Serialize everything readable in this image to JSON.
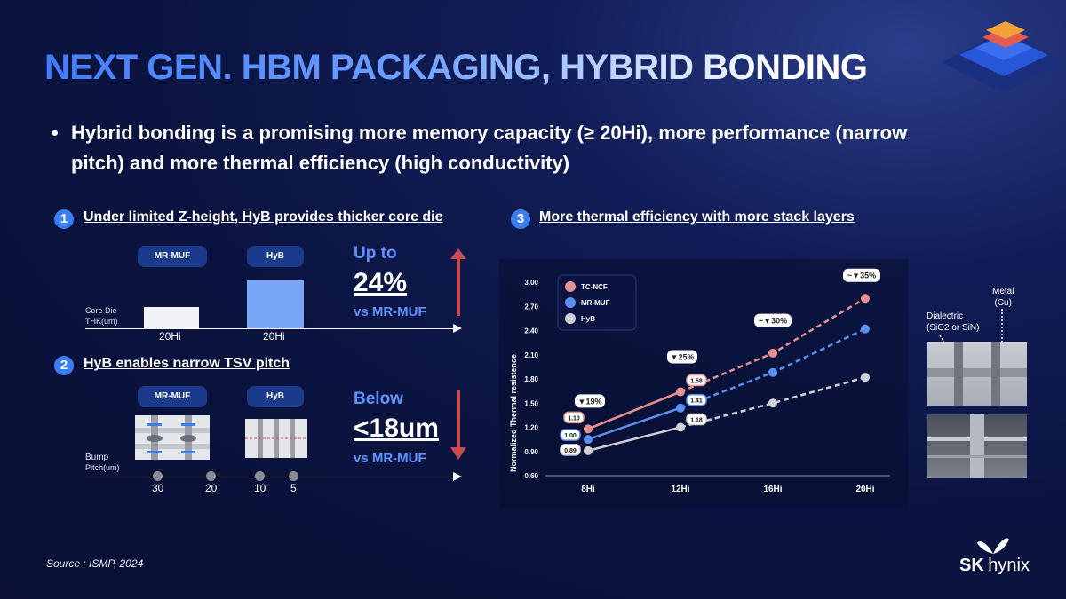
{
  "title": "NEXT GEN. HBM PACKAGING, HYBRID BONDING",
  "bullet": "Hybrid bonding is a promising more memory capacity (≥ 20Hi), more performance (narrow pitch) and more thermal efficiency (high conductivity)",
  "sections": [
    {
      "num": "1",
      "title": "Under limited Z-height, HyB provides thicker core die"
    },
    {
      "num": "2",
      "title": "HyB enables narrow TSV pitch"
    },
    {
      "num": "3",
      "title": "More thermal efficiency with more stack layers"
    }
  ],
  "s1": {
    "pill_a": "MR-MUF",
    "pill_b": "HyB",
    "axis_label_1": "Core Die",
    "axis_label_2": "THK(um)",
    "cat_a": "20Hi",
    "cat_b": "20Hi",
    "bar_a_rel": 0.45,
    "bar_b_rel": 1.0,
    "up": "Up to",
    "pct": "24%",
    "vs": "vs MR-MUF"
  },
  "s2": {
    "pill_a": "MR-MUF",
    "pill_b": "HyB",
    "axis_label_1": "Bump",
    "axis_label_2": "Pitch(um)",
    "ticks": [
      "30",
      "20",
      "10",
      "5"
    ],
    "below": "Below",
    "value": "<18um",
    "vs": "vs MR-MUF"
  },
  "chart_data": {
    "type": "line",
    "ylabel": "Normalized Thermal resistence",
    "categories": [
      "8Hi",
      "12Hi",
      "16Hi",
      "20Hi"
    ],
    "ylim": [
      0.6,
      3.0
    ],
    "yticks": [
      "3.00",
      "2.70",
      "2.40",
      "2.10",
      "1.80",
      "1.50",
      "1.20",
      "0.90",
      "0.60"
    ],
    "series": [
      {
        "name": "TC-NCF",
        "color": "#e88f8f",
        "values": [
          1.18,
          1.64,
          2.12,
          2.8
        ]
      },
      {
        "name": "MR-MUF",
        "color": "#5b8ff2",
        "values": [
          1.05,
          1.44,
          1.88,
          2.42
        ]
      },
      {
        "name": "HyB",
        "color": "#d0d0d6",
        "values": [
          0.91,
          1.2,
          1.5,
          1.82
        ]
      }
    ],
    "value_labels": [
      "1.10",
      "1.00",
      "0.89",
      "1.58",
      "1.41",
      "1.18"
    ],
    "reductions": [
      "▼19%",
      "▼25%",
      "~▼30%",
      "~▼35%"
    ]
  },
  "annotations": {
    "metal_1": "Metal",
    "metal_2": "(Cu)",
    "diel_1": "Dialectric",
    "diel_2": "(SiO2 or SiN)"
  },
  "source": "Source : ISMP, 2024",
  "logo": {
    "sk": "SK",
    "hynix": "hynix"
  },
  "colors": {
    "accent": "#3a7df0",
    "up_arrow": "#c94a52",
    "pill": "#1b3a8c"
  }
}
